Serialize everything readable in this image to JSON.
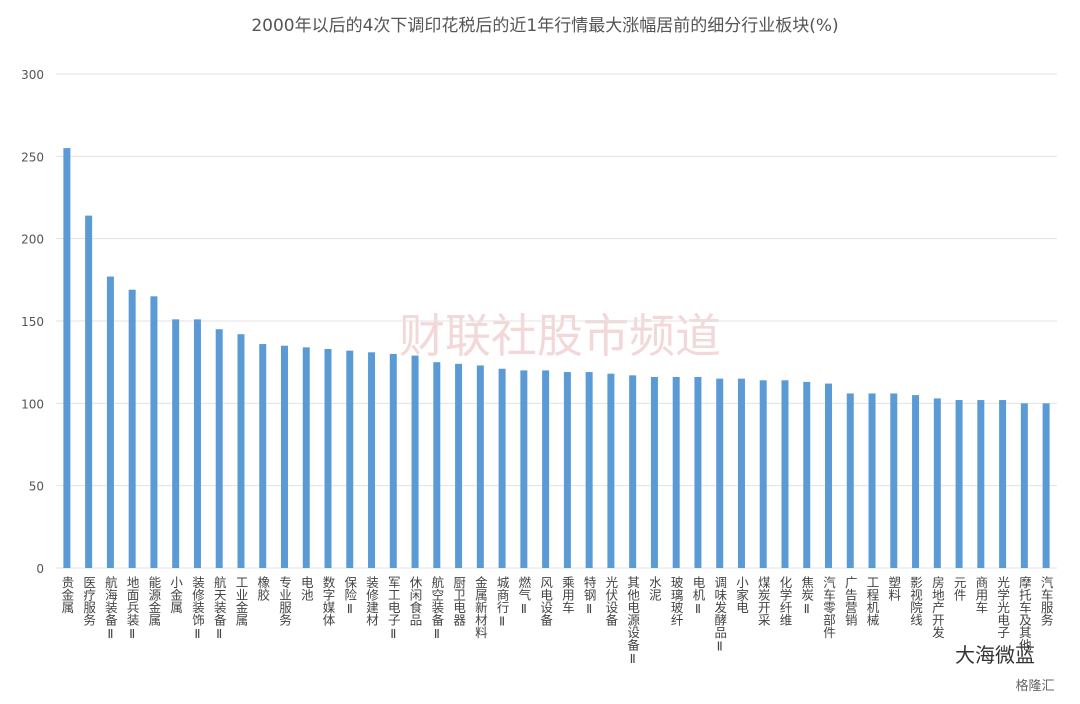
{
  "chart_data": {
    "type": "bar",
    "title": "2000年以后的4次下调印花税后的近1年行情最大涨幅居前的细分行业板块(%)",
    "categories": [
      "贵金属",
      "医疗服务",
      "航海装备Ⅱ",
      "地面兵装Ⅱ",
      "能源金属",
      "小金属",
      "装修装饰Ⅱ",
      "航天装备Ⅱ",
      "工业金属",
      "橡胶",
      "专业服务",
      "电池",
      "数字媒体",
      "保险Ⅱ",
      "装修建材",
      "军工电子Ⅱ",
      "休闲食品",
      "航空装备Ⅱ",
      "厨卫电器",
      "金属新材料",
      "城商行Ⅱ",
      "燃气Ⅱ",
      "风电设备",
      "乘用车",
      "特钢Ⅱ",
      "光伏设备",
      "其他电源设备Ⅱ",
      "水泥",
      "玻璃玻纤",
      "电机Ⅱ",
      "调味发酵品Ⅱ",
      "小家电",
      "煤炭开采",
      "化学纤维",
      "焦炭Ⅱ",
      "汽车零部件",
      "广告营销",
      "工程机械",
      "塑料",
      "影视院线",
      "房地产开发",
      "元件",
      "商用车",
      "光学光电子",
      "摩托车及其他",
      "汽车服务"
    ],
    "values": [
      255,
      214,
      177,
      169,
      165,
      151,
      151,
      145,
      142,
      136,
      135,
      134,
      133,
      132,
      131,
      130,
      129,
      125,
      124,
      123,
      121,
      120,
      120,
      119,
      119,
      118,
      117,
      116,
      116,
      116,
      115,
      115,
      114,
      114,
      113,
      112,
      106,
      106,
      106,
      105,
      103,
      102,
      102,
      102,
      100,
      100
    ],
    "color": "#5b9bd5",
    "ylim": [
      0,
      300
    ],
    "yticks": [
      0,
      50,
      100,
      150,
      200,
      250,
      300
    ],
    "grid": true,
    "watermarks": [
      "财联社股市频道",
      "大海微蓝",
      "格隆汇"
    ]
  }
}
